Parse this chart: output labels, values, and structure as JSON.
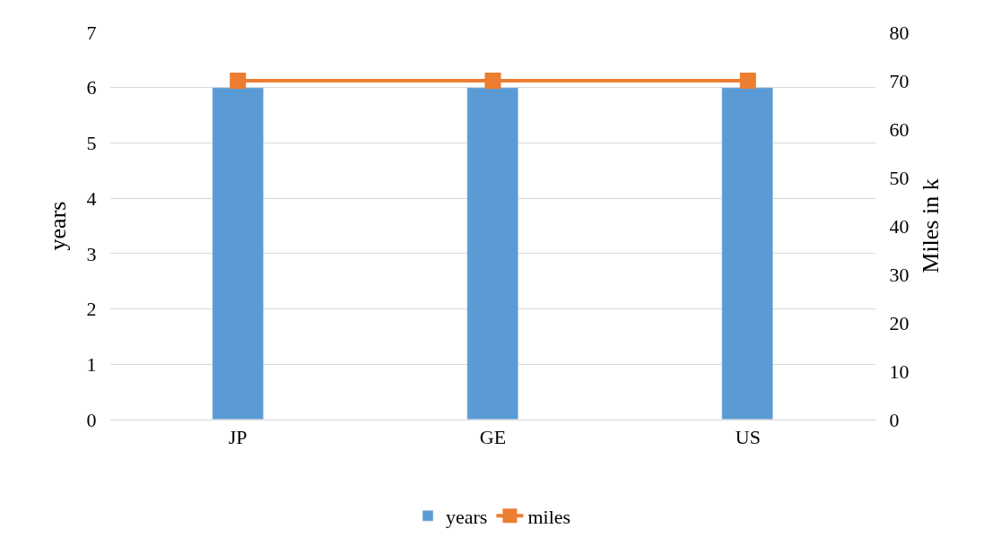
{
  "chart_data": {
    "type": "bar",
    "categories": [
      "JP",
      "GE",
      "US"
    ],
    "ylabel": "years",
    "y2label": "Miles in k",
    "series": [
      {
        "name": "years",
        "color": "#5b9bd5",
        "values": [
          6,
          6,
          6
        ]
      },
      {
        "name": "miles",
        "type": "line",
        "axis": "y2",
        "color": "#ed7d31",
        "values": [
          70,
          70,
          70
        ],
        "marker": "square"
      }
    ],
    "ylim": [
      0,
      7
    ],
    "yticks": [
      0,
      1,
      2,
      3,
      4,
      5,
      6,
      7
    ],
    "y2lim": [
      0,
      80
    ],
    "y2ticks": [
      0,
      10,
      20,
      30,
      40,
      50,
      60,
      70,
      80
    ],
    "grid": "y",
    "legend": "bottom"
  }
}
